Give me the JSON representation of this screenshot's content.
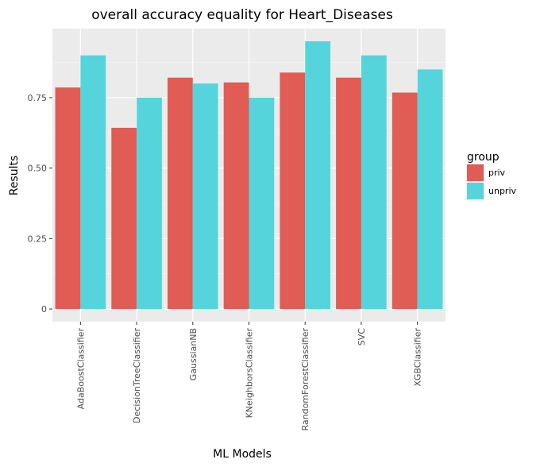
{
  "chart_data": {
    "type": "bar",
    "title": "overall accuracy equality for Heart_Diseases",
    "xlabel": "ML Models",
    "ylabel": "Results",
    "categories": [
      "AdaBoostClassifier",
      "DecisionTreeClassifier",
      "GaussianNB",
      "KNeighborsClassifier",
      "RandomForestClassifier",
      "SVC",
      "XGBClassifier"
    ],
    "series": [
      {
        "name": "priv",
        "color": "#e05c55",
        "values": [
          0.786,
          0.643,
          0.821,
          0.804,
          0.839,
          0.821,
          0.768
        ]
      },
      {
        "name": "unpriv",
        "color": "#56d4dc",
        "values": [
          0.9,
          0.75,
          0.8,
          0.75,
          0.95,
          0.9,
          0.85
        ]
      }
    ],
    "ylim": [
      -0.045,
      0.995
    ],
    "yticks": [
      0,
      0.25,
      0.5,
      0.75
    ],
    "ytick_labels": [
      "0",
      "0.25",
      "0.50",
      "0.75"
    ],
    "legend": {
      "title": "group",
      "placement": "right"
    },
    "grid": true,
    "colors": {
      "panel": "#ebebeb",
      "grid_major": "#ffffff",
      "grid_minor": "#f5f5f5"
    }
  }
}
